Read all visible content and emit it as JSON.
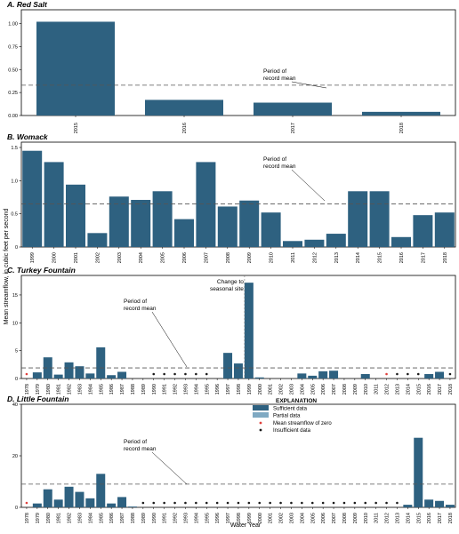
{
  "figure": {
    "y_axis_label": "Mean streamflow, in cubic feet per second",
    "x_axis_label": "Water Year"
  },
  "colors": {
    "sufficient": "#2e6180",
    "partial": "#7fa9c2",
    "zero_marker": "#e0403c",
    "insufficient_marker": "#1a1a1a",
    "mean_line": "#555555"
  },
  "legend": {
    "title": "EXPLANATION",
    "items": [
      {
        "label": "Sufficient data",
        "kind": "sufficient"
      },
      {
        "label": "Partial data",
        "kind": "partial"
      },
      {
        "label": "Mean streamflow of zero",
        "kind": "zero"
      },
      {
        "label": "Insufficient data",
        "kind": "insufficient"
      }
    ]
  },
  "chart_data": [
    {
      "type": "bar",
      "title": "A. Red Salt",
      "categories": [
        "2015",
        "2016",
        "2017",
        "2018"
      ],
      "values": [
        1.02,
        0.17,
        0.14,
        0.04
      ],
      "status": [
        "s",
        "s",
        "s",
        "s"
      ],
      "yticks": [
        "0.00",
        "0.25",
        "0.50",
        "0.75",
        "1.00"
      ],
      "ylim": [
        0,
        1.15
      ],
      "mean": 0.33,
      "annotations": [
        {
          "line1": "Period of",
          "line2": "record mean"
        }
      ]
    },
    {
      "type": "bar",
      "title": "B. Womack",
      "categories": [
        "1999",
        "2000",
        "2001",
        "2002",
        "2003",
        "2004",
        "2005",
        "2006",
        "2007",
        "2008",
        "2009",
        "2010",
        "2011",
        "2012",
        "2013",
        "2014",
        "2015",
        "2016",
        "2017",
        "2018"
      ],
      "values": [
        1.45,
        1.28,
        0.94,
        0.21,
        0.76,
        0.71,
        0.84,
        0.42,
        1.28,
        0.61,
        0.7,
        0.52,
        0.09,
        0.11,
        0.2,
        0.84,
        0.84,
        0.15,
        0.48,
        0.52
      ],
      "status": [
        "s",
        "s",
        "s",
        "s",
        "s",
        "s",
        "s",
        "s",
        "s",
        "s",
        "s",
        "s",
        "s",
        "s",
        "s",
        "s",
        "s",
        "s",
        "s",
        "s"
      ],
      "yticks": [
        "0",
        "0.5",
        "1.0",
        "1.5"
      ],
      "ylim": [
        0,
        1.58
      ],
      "mean": 0.65,
      "annotations": [
        {
          "line1": "Period of",
          "line2": "record mean"
        }
      ]
    },
    {
      "type": "bar",
      "title": "C. Turkey Fountain",
      "categories": [
        "1978",
        "1979",
        "1980",
        "1981",
        "1982",
        "1983",
        "1984",
        "1985",
        "1986",
        "1987",
        "1988",
        "1989",
        "1990",
        "1991",
        "1992",
        "1993",
        "1994",
        "1995",
        "1996",
        "1997",
        "1998",
        "1999",
        "2000",
        "2001",
        "2002",
        "2003",
        "2004",
        "2005",
        "2006",
        "2007",
        "2008",
        "2009",
        "2010",
        "2011",
        "2012",
        "2013",
        "2014",
        "2015",
        "2016",
        "2017",
        "2018"
      ],
      "values": [
        0,
        1.1,
        3.8,
        0.7,
        2.9,
        2.2,
        0.9,
        5.6,
        0.6,
        1.2,
        0,
        0,
        0,
        0,
        0,
        0,
        0,
        0,
        0,
        4.6,
        2.7,
        17.2,
        0.2,
        0,
        0,
        0,
        0.9,
        0.5,
        1.3,
        1.4,
        0,
        0,
        0.8,
        0,
        0,
        0,
        0,
        0,
        0.8,
        1.2,
        0
      ],
      "status": [
        "z",
        "s",
        "s",
        "s",
        "s",
        "s",
        "s",
        "s",
        "s",
        "s",
        "n",
        "n",
        "i",
        "i",
        "i",
        "i",
        "i",
        "i",
        "n",
        "s",
        "s",
        "s",
        "s",
        "n",
        "n",
        "n",
        "s",
        "s",
        "s",
        "s",
        "n",
        "n",
        "s",
        "n",
        "z",
        "i",
        "i",
        "i",
        "s",
        "s",
        "i"
      ],
      "yticks": [
        "0",
        "5",
        "10",
        "15"
      ],
      "ylim": [
        0,
        18.5
      ],
      "mean": 1.9,
      "annotations": [
        {
          "line1": "Change to",
          "line2": "seasonal site"
        },
        {
          "line1": "Period of",
          "line2": "record mean"
        }
      ]
    },
    {
      "type": "bar",
      "title": "D. Little Fountain",
      "categories": [
        "1978",
        "1979",
        "1980",
        "1981",
        "1982",
        "1983",
        "1984",
        "1985",
        "1986",
        "1987",
        "1988",
        "1989",
        "1990",
        "1991",
        "1992",
        "1993",
        "1994",
        "1995",
        "1996",
        "1997",
        "1998",
        "1999",
        "2000",
        "2001",
        "2002",
        "2003",
        "2004",
        "2005",
        "2006",
        "2007",
        "2008",
        "2009",
        "2010",
        "2011",
        "2012",
        "2013",
        "2014",
        "2015",
        "2016",
        "2017",
        "2018"
      ],
      "values": [
        0,
        1.5,
        7.0,
        3.0,
        8.0,
        6.0,
        3.5,
        13.0,
        1.5,
        4.0,
        0.3,
        0,
        0,
        0,
        0,
        0,
        0,
        0,
        0,
        0,
        0,
        0,
        0,
        0,
        0,
        0,
        0,
        0,
        0,
        0,
        0,
        0,
        0,
        0,
        0,
        0,
        1.0,
        27.0,
        3.0,
        2.5,
        1.0
      ],
      "status": [
        "z",
        "s",
        "s",
        "s",
        "s",
        "s",
        "s",
        "s",
        "s",
        "s",
        "s",
        "i",
        "i",
        "i",
        "i",
        "i",
        "i",
        "i",
        "i",
        "i",
        "i",
        "i",
        "i",
        "i",
        "i",
        "i",
        "i",
        "i",
        "i",
        "i",
        "i",
        "i",
        "i",
        "i",
        "i",
        "i",
        "s",
        "s",
        "s",
        "s",
        "s"
      ],
      "yticks": [
        "0",
        "20",
        "40"
      ],
      "ylim": [
        0,
        40
      ],
      "mean": 9.0,
      "annotations": [
        {
          "line1": "Period of",
          "line2": "record mean"
        }
      ]
    }
  ]
}
